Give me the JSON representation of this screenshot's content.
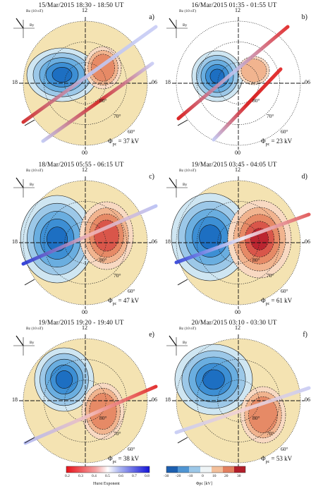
{
  "panels": [
    {
      "id": "a",
      "title": "15/Mar/2015 18:30 - 18:50 UT",
      "label": "a)",
      "phi_value": "37 kV"
    },
    {
      "id": "b",
      "title": "16/Mar/2015 01:35 - 01:55 UT",
      "label": "b)",
      "phi_value": "23 kV"
    },
    {
      "id": "c",
      "title": "18/Mar/2015 05:55 - 06:15 UT",
      "label": "c)",
      "phi_value": "47 kV"
    },
    {
      "id": "d",
      "title": "19/Mar/2015 03:45 - 04:05 UT",
      "label": "d)",
      "phi_value": "61 kV"
    },
    {
      "id": "e",
      "title": "19/Mar/2015 19:20 - 19:40 UT",
      "label": "e)",
      "phi_value": "38 kV"
    },
    {
      "id": "f",
      "title": "20/Mar/2015 03:10 - 03:30 UT",
      "label": "f)",
      "phi_value": "53 kV"
    }
  ],
  "common": {
    "mlt_top": "12",
    "mlt_left": "18",
    "mlt_right": "06",
    "mlt_bottom": "00",
    "lat_80": "80°",
    "lat_70": "70°",
    "lat_60": "60°",
    "phi_symbol": "Φ",
    "phi_sub": "pc",
    "phi_eq": " = ",
    "bz_label": "Bz (10 nT)",
    "by_label": "By"
  },
  "colorbar_hurst": {
    "ticks": [
      "0.2",
      "0.3",
      "0.4",
      "0.5",
      "0.6",
      "0.7",
      "0.8"
    ],
    "title": "Hurst Exponent"
  },
  "colorbar_phi": {
    "ticks": [
      "-30",
      "-20",
      "-10",
      "0",
      "10",
      "20",
      "30"
    ],
    "title": "Φpc [kV]"
  },
  "colors": {
    "background_disk": "#f4e3b2",
    "negative": "#2a78c6",
    "positive": "#e07b5a",
    "track_high": "#2b3fd8",
    "track_low": "#e02020"
  }
}
